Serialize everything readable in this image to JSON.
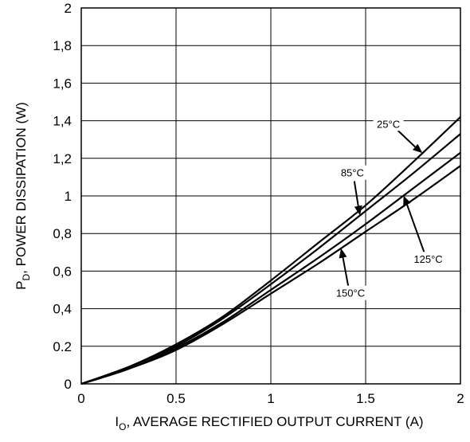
{
  "chart_data": {
    "type": "line",
    "title": "",
    "xlabel": {
      "main": "I",
      "sub": "O",
      "rest": ", AVERAGE RECTIFIED OUTPUT CURRENT (A)"
    },
    "ylabel": {
      "main": "P",
      "sub": "D",
      "rest": ", POWER DISSIPATION (W)"
    },
    "xlim": [
      0,
      2
    ],
    "ylim": [
      0,
      2
    ],
    "x_ticks": [
      0,
      0.5,
      1,
      1.5,
      2
    ],
    "x_tick_labels": [
      "0",
      "0.5",
      "1",
      "1.5",
      "2"
    ],
    "y_ticks": [
      0,
      0.2,
      0.4,
      0.6,
      0.8,
      1,
      1.2,
      1.4,
      1.6,
      1.8,
      2
    ],
    "y_tick_labels": [
      "0",
      "0.2",
      "0,4",
      "0,6",
      "0,8",
      "1",
      "1,2",
      "1,4",
      "1,6",
      "1,8",
      "2"
    ],
    "grid": true,
    "legend": "none",
    "series": [
      {
        "name": "25°C",
        "x": [
          0,
          0.25,
          0.5,
          0.75,
          1.0,
          1.25,
          1.5,
          1.75,
          2.0
        ],
        "y": [
          0,
          0.09,
          0.21,
          0.36,
          0.55,
          0.75,
          0.95,
          1.18,
          1.42
        ]
      },
      {
        "name": "85°C",
        "x": [
          0,
          0.25,
          0.5,
          0.75,
          1.0,
          1.25,
          1.5,
          1.75,
          2.0
        ],
        "y": [
          0,
          0.09,
          0.2,
          0.35,
          0.53,
          0.72,
          0.92,
          1.12,
          1.33
        ]
      },
      {
        "name": "125°C",
        "x": [
          0,
          0.25,
          0.5,
          0.75,
          1.0,
          1.25,
          1.5,
          1.75,
          2.0
        ],
        "y": [
          0,
          0.08,
          0.19,
          0.33,
          0.5,
          0.67,
          0.85,
          1.04,
          1.23
        ]
      },
      {
        "name": "150°C",
        "x": [
          0,
          0.25,
          0.5,
          0.75,
          1.0,
          1.25,
          1.5,
          1.75,
          2.0
        ],
        "y": [
          0,
          0.08,
          0.18,
          0.32,
          0.48,
          0.64,
          0.81,
          0.98,
          1.16
        ]
      }
    ],
    "annotations": [
      {
        "text": "25°C",
        "series": "25°C",
        "point_x": 1.8,
        "text_x": 1.62,
        "text_y": 1.38
      },
      {
        "text": "85°C",
        "series": "85°C",
        "point_x": 1.47,
        "text_x": 1.43,
        "text_y": 1.12
      },
      {
        "text": "125°C",
        "series": "125°C",
        "point_x": 1.7,
        "text_x": 1.83,
        "text_y": 0.66
      },
      {
        "text": "150°C",
        "series": "150°C",
        "point_x": 1.37,
        "text_x": 1.42,
        "text_y": 0.48
      }
    ]
  }
}
